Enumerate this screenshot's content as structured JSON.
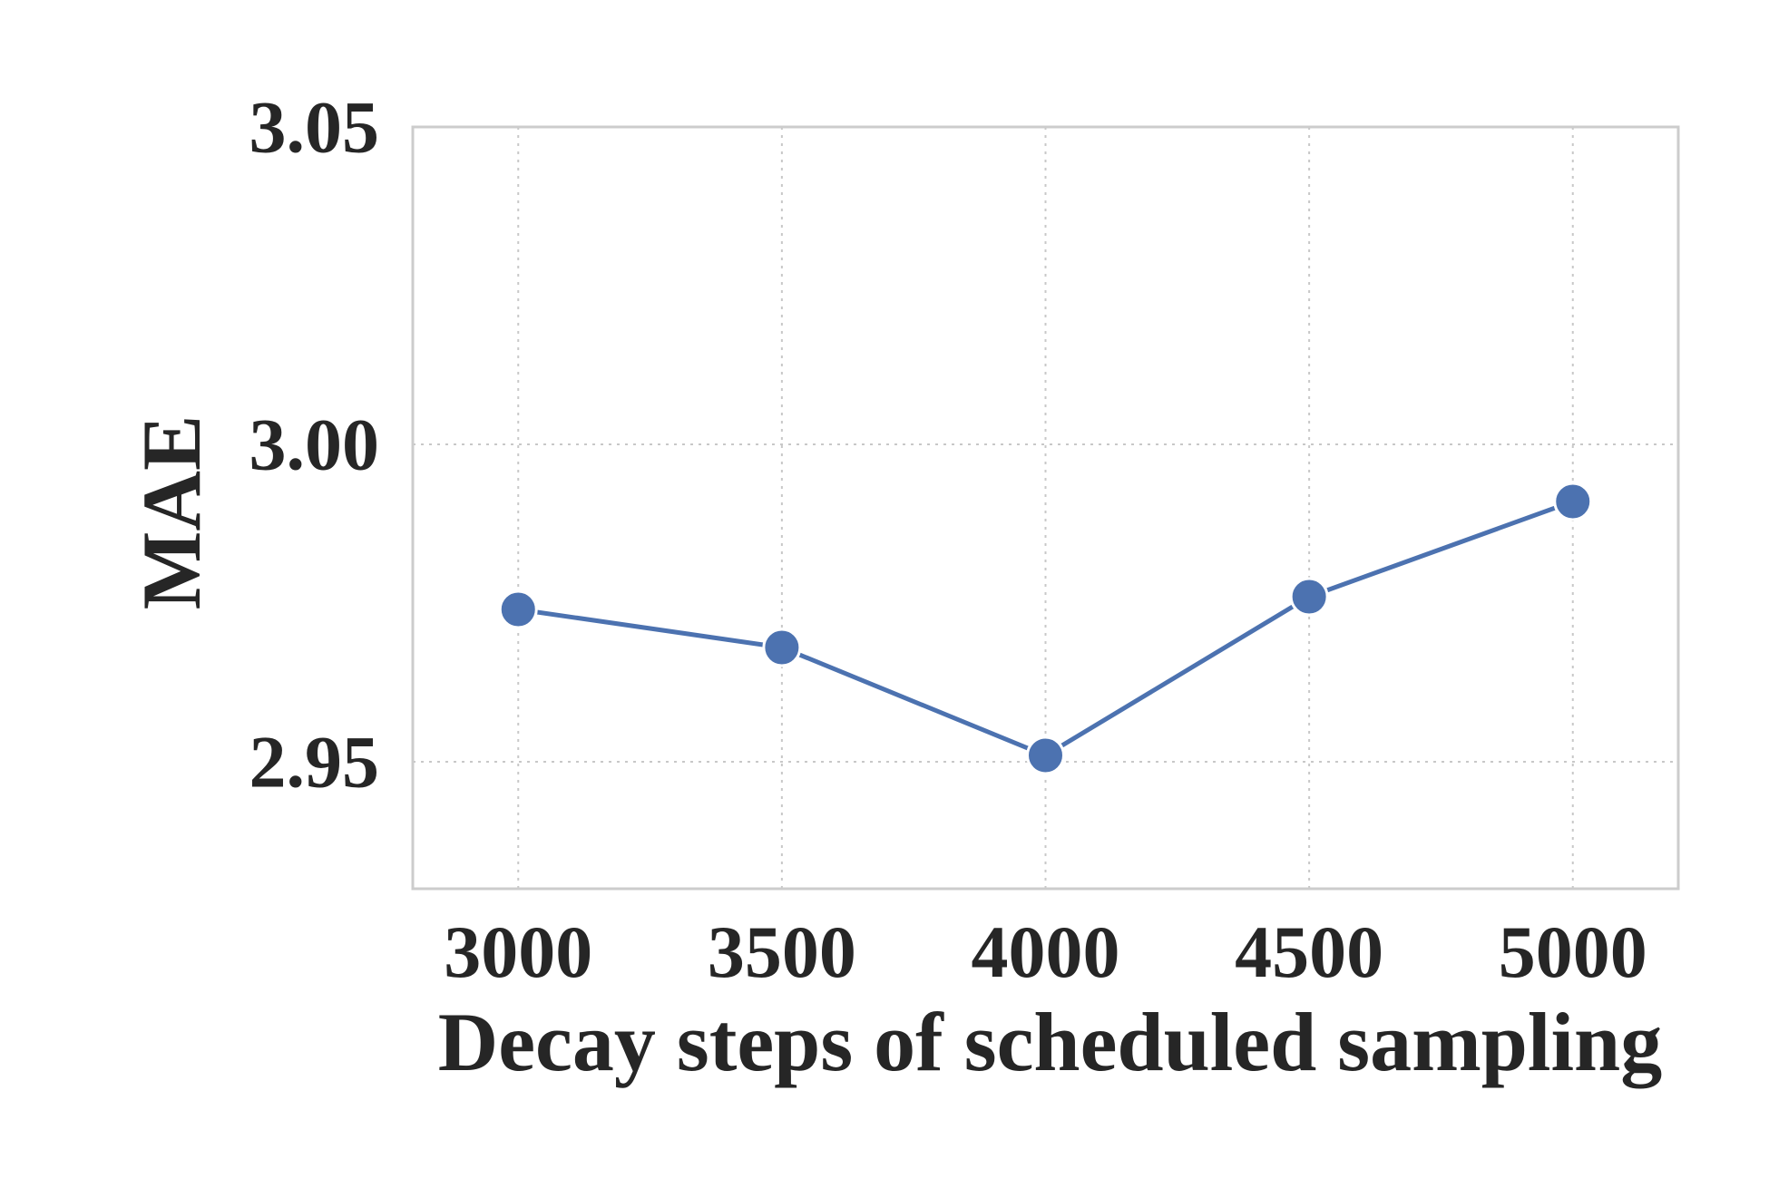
{
  "chart_data": {
    "type": "line",
    "title": "",
    "xlabel": "Decay steps of scheduled sampling",
    "ylabel": "MAE",
    "x": [
      3000,
      3500,
      4000,
      4500,
      5000
    ],
    "x_tick_labels": [
      "3000",
      "3500",
      "4000",
      "4500",
      "5000"
    ],
    "y_ticks": [
      2.95,
      3.0,
      3.05
    ],
    "y_tick_labels": [
      "2.95",
      "3.00",
      "3.05"
    ],
    "xlim": [
      2800,
      5200
    ],
    "ylim": [
      2.93,
      3.05
    ],
    "series": [
      {
        "values": [
          2.974,
          2.968,
          2.951,
          2.976,
          2.991
        ],
        "color": "#4c72b0",
        "marker": "circle"
      }
    ],
    "grid": true,
    "grid_style": "dotted",
    "legend": "none",
    "colors": {
      "line": "#4c72b0",
      "marker_edge": "#ffffff",
      "grid": "#c8c8c8",
      "frame": "#cccccc",
      "text": "#262626"
    }
  }
}
